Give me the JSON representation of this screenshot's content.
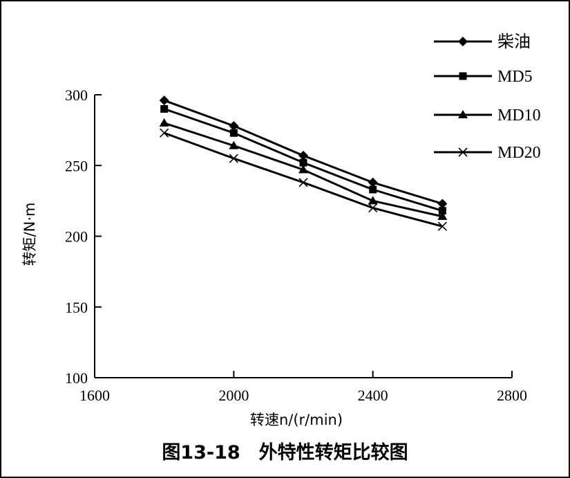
{
  "caption": "图13-18　外特性转矩比较图",
  "chart_data": {
    "type": "line",
    "title": "",
    "xlabel": "转速n/(r/min)",
    "ylabel": "转矩/N·m",
    "xlim": [
      1600,
      2800
    ],
    "ylim": [
      100,
      300
    ],
    "xticks": [
      1600,
      2000,
      2400,
      2800
    ],
    "yticks": [
      100,
      150,
      200,
      250,
      300
    ],
    "grid": false,
    "legend_position": "top-right",
    "series": [
      {
        "name": "柴油",
        "marker": "diamond",
        "x": [
          1800,
          2000,
          2200,
          2400,
          2600
        ],
        "y": [
          296,
          278,
          257,
          238,
          223
        ]
      },
      {
        "name": "MD5",
        "marker": "square",
        "x": [
          1800,
          2000,
          2200,
          2400,
          2600
        ],
        "y": [
          290,
          273,
          252,
          233,
          218
        ]
      },
      {
        "name": "MD10",
        "marker": "triangle",
        "x": [
          1800,
          2000,
          2200,
          2400,
          2600
        ],
        "y": [
          280,
          264,
          247,
          225,
          214
        ]
      },
      {
        "name": "MD20",
        "marker": "x",
        "x": [
          1800,
          2000,
          2200,
          2400,
          2600
        ],
        "y": [
          273,
          255,
          238,
          220,
          207
        ]
      }
    ]
  }
}
